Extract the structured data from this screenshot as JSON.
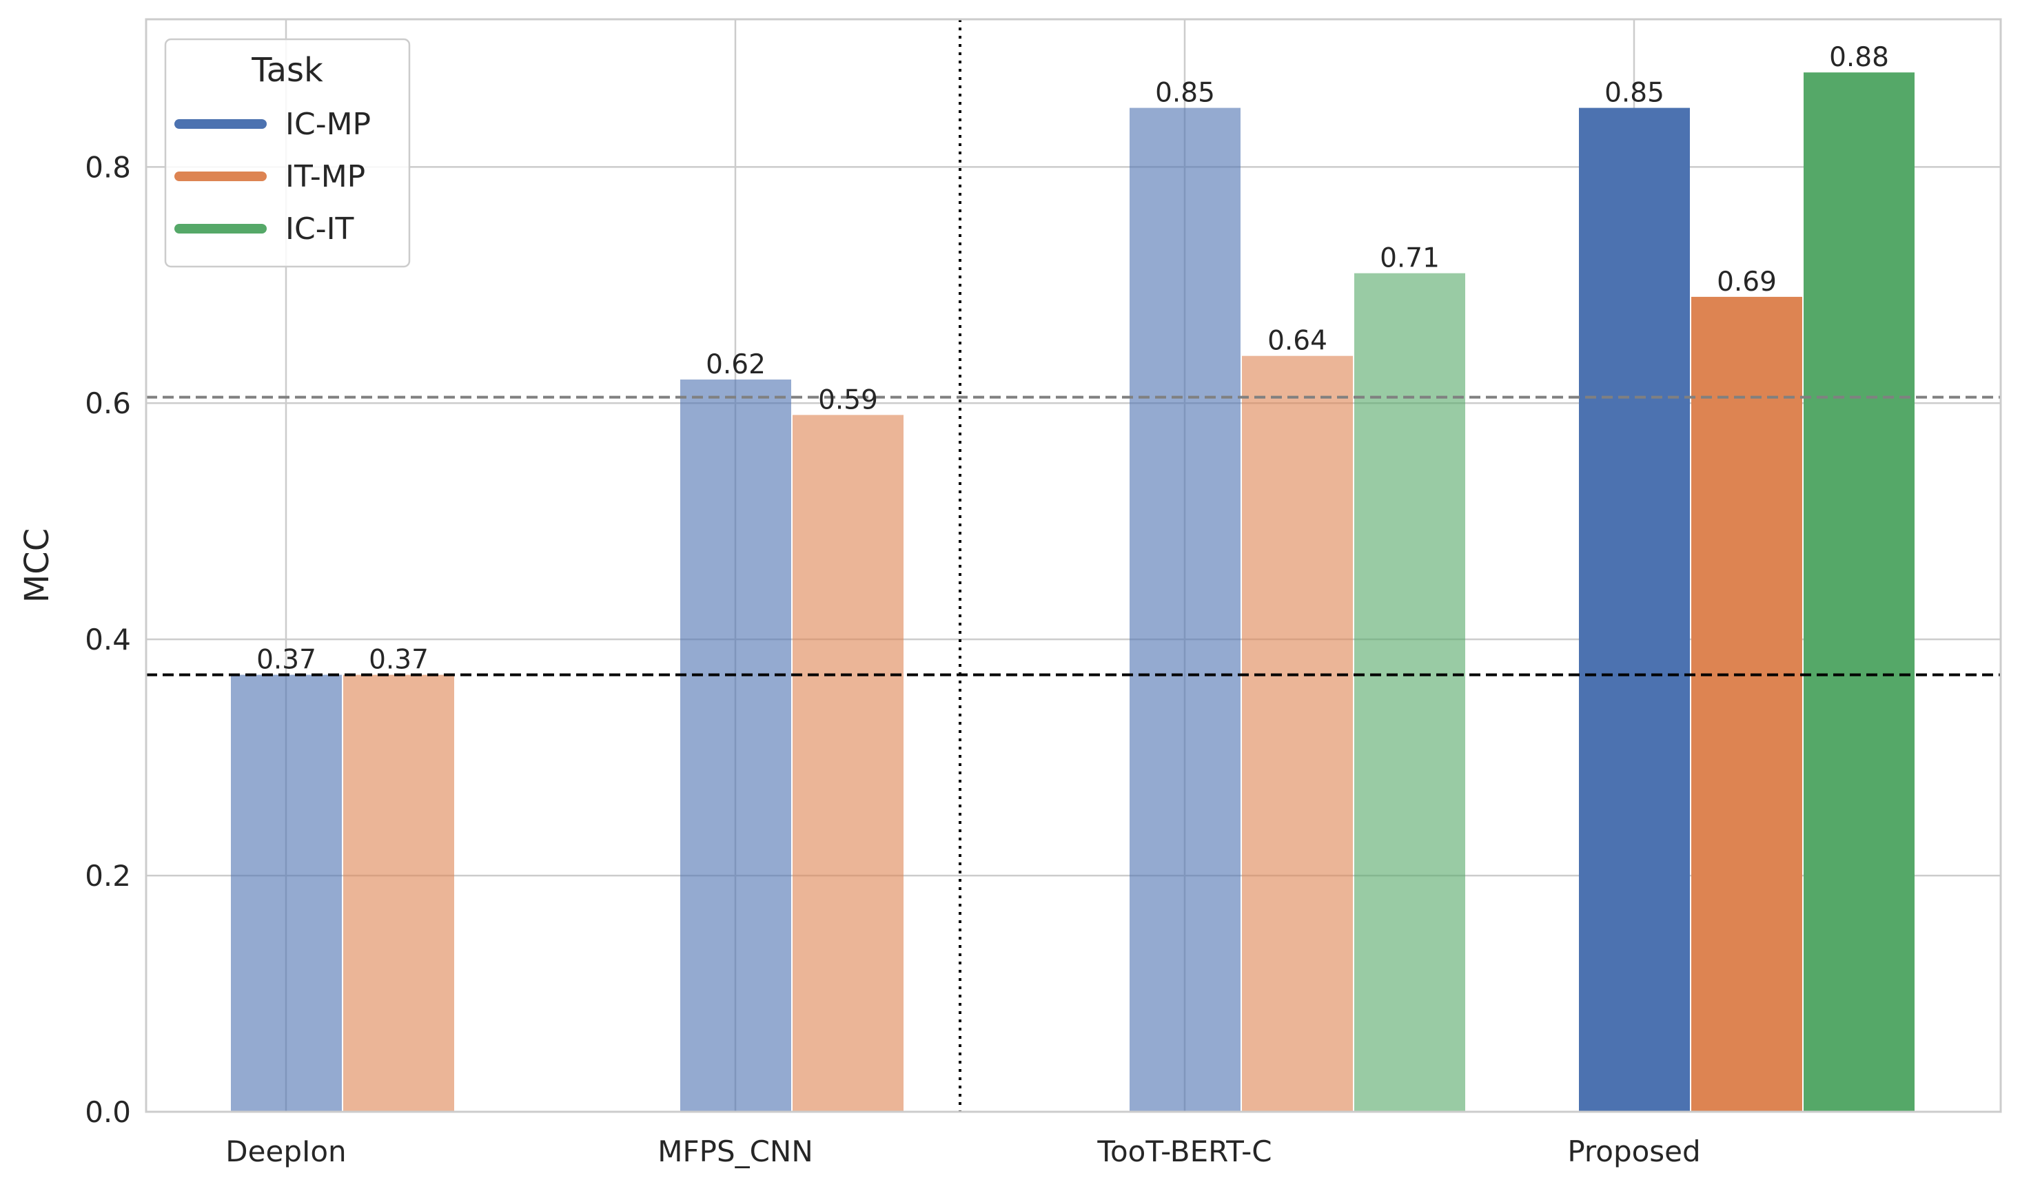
{
  "chart_data": {
    "type": "bar",
    "categories": [
      "DeepIon",
      "MFPS_CNN",
      "TooT-BERT-C",
      "Proposed"
    ],
    "series": [
      {
        "name": "IC-MP",
        "color": "#4c72b0",
        "values": [
          0.37,
          0.62,
          0.85,
          0.85
        ]
      },
      {
        "name": "IT-MP",
        "color": "#dd8452",
        "values": [
          0.37,
          0.59,
          0.64,
          0.69
        ]
      },
      {
        "name": "IC-IT",
        "color": "#55a868",
        "values": [
          null,
          null,
          0.71,
          0.88
        ]
      }
    ],
    "highlight_category": "Proposed",
    "faded_opacity": 0.6,
    "title": "",
    "xlabel": "",
    "ylabel": "MCC",
    "ylim": [
      0.0,
      0.925
    ],
    "yticks": [
      0.0,
      0.2,
      0.4,
      0.6,
      0.8
    ],
    "grid": true,
    "legend": {
      "title": "Task",
      "placement": "top-left"
    },
    "reference_lines": [
      {
        "y": 0.37,
        "style": "dashed",
        "color": "#000000"
      },
      {
        "y": 0.605,
        "style": "dashed",
        "color": "#808080"
      }
    ],
    "vertical_separator": {
      "between_categories": [
        1,
        2
      ],
      "style": "dotted",
      "color": "#000000"
    }
  }
}
